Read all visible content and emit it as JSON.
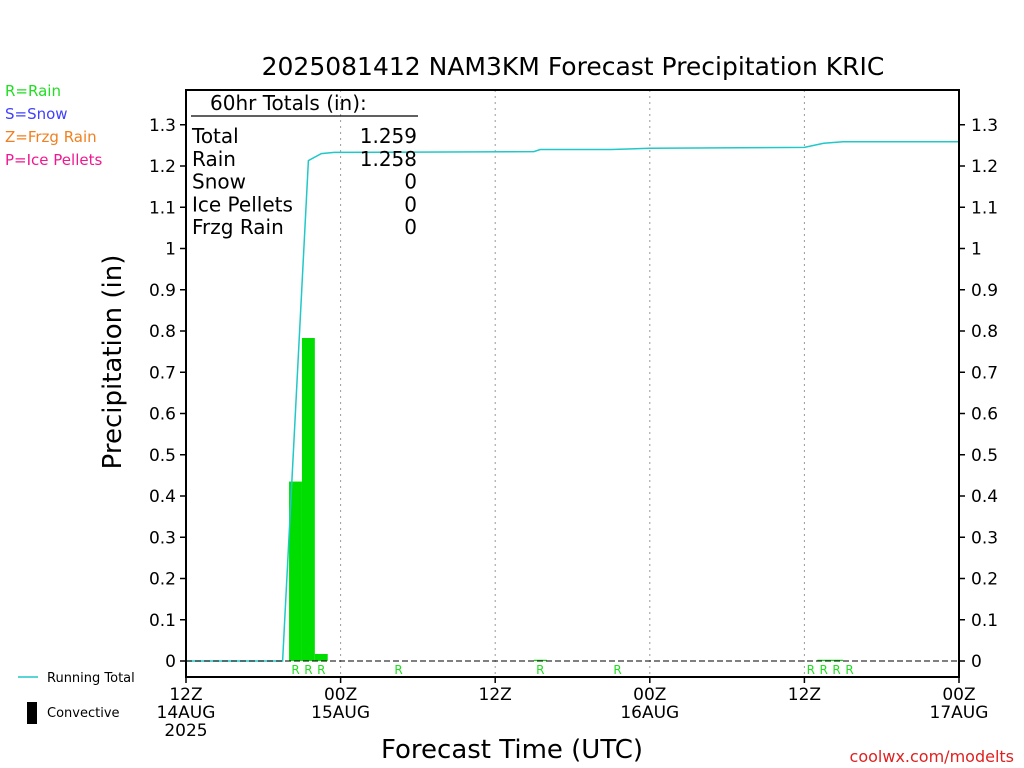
{
  "chart_data": {
    "type": "bar",
    "title": "2025081412 NAM3KM Forecast Precipitation KRIC",
    "xlabel": "Forecast Time (UTC)",
    "ylabel": "Precipitation (in)",
    "ylim": [
      0,
      1.35
    ],
    "xlim_hours": [
      0,
      60
    ],
    "y_ticks": [
      "0",
      "0.1",
      "0.2",
      "0.3",
      "0.4",
      "0.5",
      "0.6",
      "0.7",
      "0.8",
      "0.9",
      "1",
      "1.1",
      "1.2",
      "1.3"
    ],
    "x_ticks": [
      {
        "hour": 0,
        "lines": [
          "12Z",
          "14AUG",
          "2025"
        ]
      },
      {
        "hour": 12,
        "lines": [
          "00Z",
          "15AUG"
        ]
      },
      {
        "hour": 24,
        "lines": [
          "12Z"
        ]
      },
      {
        "hour": 36,
        "lines": [
          "00Z",
          "16AUG"
        ]
      },
      {
        "hour": 48,
        "lines": [
          "12Z"
        ]
      },
      {
        "hour": 60,
        "lines": [
          "00Z",
          "17AUG"
        ]
      }
    ],
    "grid_hours": [
      12,
      24,
      36,
      48
    ],
    "legend_types": [
      {
        "label": "R=Rain",
        "color": "#22dd22"
      },
      {
        "label": "S=Snow",
        "color": "#4040ff"
      },
      {
        "label": "Z=Frzg Rain",
        "color": "#f08020"
      },
      {
        "label": "P=Ice Pellets",
        "color": "#f01890"
      }
    ],
    "legend_lines": [
      {
        "label": "Running Total",
        "color": "#20c8c8",
        "kind": "line"
      },
      {
        "label": "Convective",
        "color": "#000000",
        "kind": "bar"
      }
    ],
    "totals": {
      "heading": "60hr Totals (in):",
      "rows": [
        {
          "label": "Total",
          "value": "1.259"
        },
        {
          "label": "Rain",
          "value": "1.258"
        },
        {
          "label": "Snow",
          "value": "0"
        },
        {
          "label": "Ice Pellets",
          "value": "0"
        },
        {
          "label": "Frzg Rain",
          "value": "0"
        }
      ]
    },
    "bar_color": "#00dd00",
    "bars": [
      {
        "hour": 8.5,
        "value": 0.435
      },
      {
        "hour": 9.5,
        "value": 0.783
      },
      {
        "hour": 10.5,
        "value": 0.017
      },
      {
        "hour": 27.5,
        "value": 0.003
      },
      {
        "hour": 49.5,
        "value": 0.003
      },
      {
        "hour": 50.5,
        "value": 0.003
      }
    ],
    "type_markers": [
      {
        "hour": 8.5,
        "code": "R"
      },
      {
        "hour": 9.5,
        "code": "R"
      },
      {
        "hour": 10.5,
        "code": "R"
      },
      {
        "hour": 16.5,
        "code": "R"
      },
      {
        "hour": 27.5,
        "code": "R"
      },
      {
        "hour": 33.5,
        "code": "R"
      },
      {
        "hour": 48.5,
        "code": "R"
      },
      {
        "hour": 49.5,
        "code": "R"
      },
      {
        "hour": 50.5,
        "code": "R"
      },
      {
        "hour": 51.5,
        "code": "R"
      }
    ],
    "running_total": {
      "name": "Running Total",
      "x": [
        0,
        7.5,
        9.5,
        10.5,
        11.5,
        27,
        27.5,
        33,
        36,
        48,
        49.5,
        51,
        60
      ],
      "y": [
        0,
        0,
        1.213,
        1.23,
        1.233,
        1.235,
        1.24,
        1.24,
        1.243,
        1.245,
        1.255,
        1.259,
        1.259
      ]
    }
  },
  "watermark": "coolwx.com/modelts"
}
